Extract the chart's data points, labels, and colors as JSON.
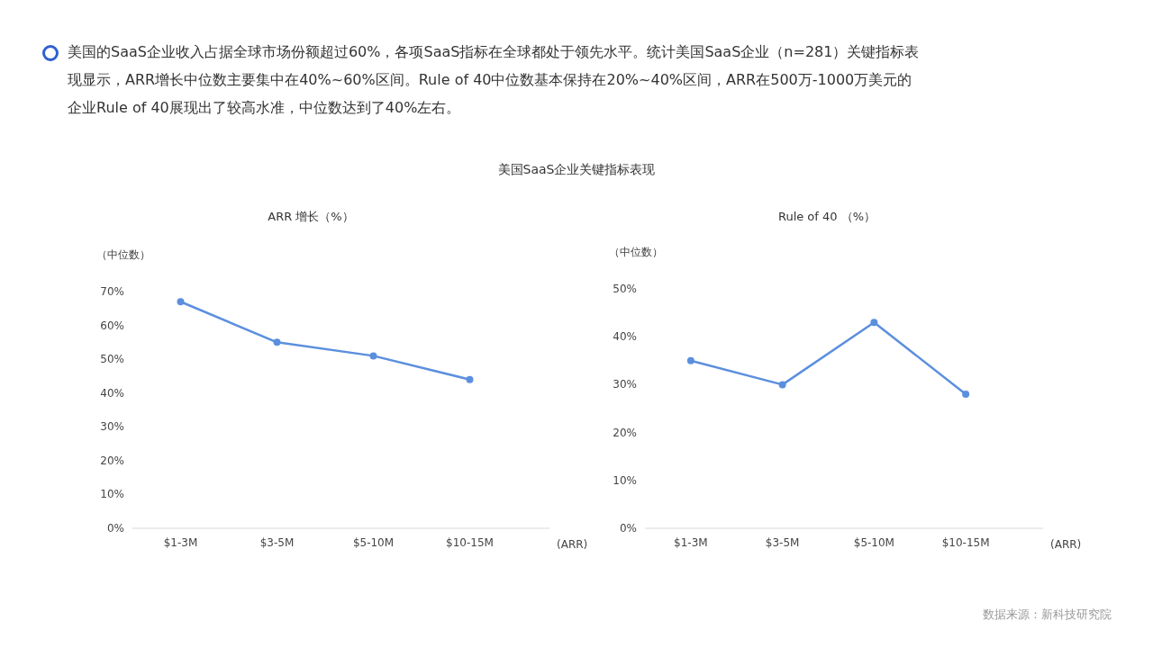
{
  "chart_data": [
    {
      "type": "line",
      "title": "ARR 增长（%）",
      "ylabel": "（中位数）",
      "xlabel": "(ARR)",
      "categories": [
        "$1-3M",
        "$3-5M",
        "$5-10M",
        "$10-15M"
      ],
      "series": [
        {
          "color": "#5b8fde",
          "values": [
            67,
            55,
            51,
            44
          ]
        }
      ],
      "ylim": [
        0,
        70
      ],
      "yticks": [
        {
          "value": 0,
          "label": "0%"
        },
        {
          "value": 10,
          "label": "10%"
        },
        {
          "value": 20,
          "label": "20%"
        },
        {
          "value": 30,
          "label": "30%"
        },
        {
          "value": 40,
          "label": "40%"
        },
        {
          "value": 50,
          "label": "50%"
        },
        {
          "value": 60,
          "label": "60%"
        },
        {
          "value": 70,
          "label": "70%"
        }
      ],
      "marker": "circle",
      "line_style": "solid",
      "annotations": [
        "美国的SaaS企业收入占据全球市场份额超过60%，各项SaaS指标在全球都处于领先水平。统计美国SaaS企业（n=281）关键指标表现显示，ARR增长中位数主要集中在40%~60%区间。Rule of 40中位数基本保持在20%~40%区间，ARR在500万-1000万美元的企业Rule of 40展现出了较高水准，中位数达到了40%左右。",
        "美国SaaS企业关键指标表现"
      ]
    },
    {
      "type": "line",
      "title": "Rule of 40 （%）",
      "ylabel": "（中位数）",
      "xlabel": "(ARR)",
      "categories": [
        "$1-3M",
        "$3-5M",
        "$5-10M",
        "$10-15M"
      ],
      "series": [
        {
          "color": "#5b8fde",
          "values": [
            35,
            30,
            43,
            28
          ]
        }
      ],
      "ylim": [
        0,
        50
      ],
      "yticks": [
        {
          "value": 0,
          "label": "0%"
        },
        {
          "value": 10,
          "label": "10%"
        },
        {
          "value": 20,
          "label": "20%"
        },
        {
          "value": 30,
          "label": "30%"
        },
        {
          "value": 40,
          "label": "40%"
        },
        {
          "value": 50,
          "label": "50%"
        }
      ],
      "marker": "circle",
      "line_style": "solid",
      "annotations": [
        "数据来源：新科技研究院"
      ]
    }
  ]
}
